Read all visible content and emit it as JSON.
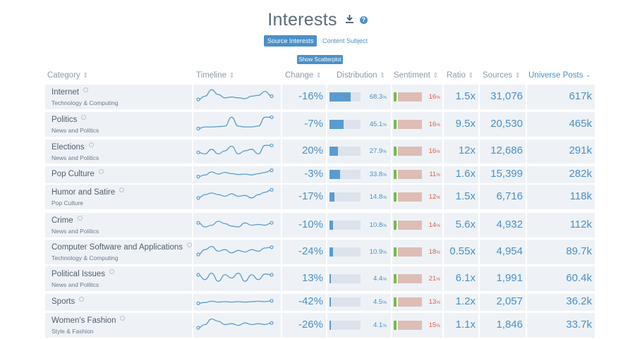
{
  "title": "Interests",
  "toggles": [
    "Source Interests",
    "Content Subject"
  ],
  "scatter_button": "Show Scatterplot",
  "headers": {
    "category": "Category",
    "timeline": "Timeline",
    "change": "Change",
    "distribution": "Distribution",
    "sentiment": "Sentiment",
    "ratio": "Ratio",
    "sources": "Sources",
    "universe": "Universe Posts"
  },
  "rows": [
    {
      "name": "Internet",
      "sub": "Technology & Computing",
      "change": "-16%",
      "dist": "68.3",
      "dist_value": 68.3,
      "sent": "16",
      "ratio": "1.5x",
      "sources": "31,076",
      "universe": "617k",
      "spark": [
        0.3,
        0.5,
        0.9,
        0.6,
        0.4,
        0.45,
        0.4,
        0.35,
        0.5,
        0.55,
        0.8,
        0.5
      ]
    },
    {
      "name": "Politics",
      "sub": "News and Politics",
      "change": "-7%",
      "dist": "45.1",
      "dist_value": 45.1,
      "sent": "16",
      "ratio": "9.5x",
      "sources": "20,530",
      "universe": "465k",
      "spark": [
        0.2,
        0.3,
        0.3,
        0.32,
        0.35,
        0.9,
        0.35,
        0.3,
        0.3,
        0.35,
        0.9,
        0.9
      ]
    },
    {
      "name": "Elections",
      "sub": "News and Politics",
      "change": "20%",
      "dist": "27.9",
      "dist_value": 27.9,
      "sent": "16",
      "ratio": "12x",
      "sources": "12,686",
      "universe": "291k",
      "spark": [
        0.4,
        0.3,
        0.6,
        0.3,
        0.5,
        0.8,
        0.3,
        0.5,
        0.6,
        0.3,
        0.85,
        0.85
      ]
    },
    {
      "name": "Pop Culture",
      "sub": "",
      "change": "-3%",
      "dist": "33.8",
      "dist_value": 33.8,
      "sent": "11",
      "ratio": "1.6x",
      "sources": "15,399",
      "universe": "282k",
      "spark": [
        0.2,
        0.4,
        0.75,
        0.5,
        0.7,
        0.55,
        0.45,
        0.5,
        0.4,
        0.55,
        0.7,
        0.95
      ]
    },
    {
      "name": "Humor and Satire",
      "sub": "Pop Culture",
      "change": "-17%",
      "dist": "14.8",
      "dist_value": 14.8,
      "sent": "12",
      "ratio": "1.5x",
      "sources": "6,716",
      "universe": "118k",
      "spark": [
        0.4,
        0.6,
        0.7,
        0.6,
        0.5,
        0.65,
        0.5,
        0.55,
        0.4,
        0.6,
        0.75,
        0.9
      ]
    },
    {
      "name": "Crime",
      "sub": "News and Politics",
      "change": "-10%",
      "dist": "10.8",
      "dist_value": 10.8,
      "sent": "14",
      "ratio": "5.6x",
      "sources": "4,932",
      "universe": "112k",
      "spark": [
        0.6,
        0.35,
        0.45,
        0.7,
        0.55,
        0.4,
        0.35,
        0.6,
        0.45,
        0.5,
        0.45,
        0.6
      ]
    },
    {
      "name": "Computer Software and Applications",
      "sub": "Technology & Computing",
      "change": "-24%",
      "dist": "10.9",
      "dist_value": 10.9,
      "sent": "18",
      "ratio": "0.55x",
      "sources": "4,954",
      "universe": "89.7k",
      "spark": [
        0.3,
        0.6,
        0.8,
        0.5,
        0.6,
        0.4,
        0.55,
        0.45,
        0.6,
        0.5,
        0.7,
        0.75
      ]
    },
    {
      "name": "Political Issues",
      "sub": "News and Politics",
      "change": "13%",
      "dist": "4.4",
      "dist_value": 4.4,
      "sent": "21",
      "ratio": "6.1x",
      "sources": "1,991",
      "universe": "60.4k",
      "spark": [
        0.7,
        0.4,
        0.8,
        0.3,
        0.7,
        0.5,
        0.8,
        0.3,
        0.7,
        0.4,
        0.75,
        0.7
      ]
    },
    {
      "name": "Sports",
      "sub": "",
      "change": "-42%",
      "dist": "4.5",
      "dist_value": 4.5,
      "sent": "13",
      "ratio": "1.2x",
      "sources": "2,057",
      "universe": "36.2k",
      "spark": [
        0.3,
        0.4,
        0.55,
        0.45,
        0.5,
        0.45,
        0.5,
        0.45,
        0.5,
        0.55,
        0.5,
        0.6
      ]
    },
    {
      "name": "Women's Fashion",
      "sub": "Style & Fashion",
      "change": "-26%",
      "dist": "4.1",
      "dist_value": 4.1,
      "sent": "15",
      "ratio": "1.1x",
      "sources": "1,846",
      "universe": "33.7k",
      "spark": [
        0.3,
        0.5,
        0.85,
        0.7,
        0.5,
        0.55,
        0.45,
        0.6,
        0.5,
        0.55,
        0.5,
        0.6
      ]
    }
  ],
  "colors": {
    "accent": "#4a90c8",
    "negative": "#e05a4a",
    "positive_sent": "#78b84a",
    "row_bg": "#eef2f6"
  },
  "icons": [
    "download-icon",
    "help-icon",
    "sort-icon",
    "sort-down-icon",
    "settings-icon"
  ]
}
